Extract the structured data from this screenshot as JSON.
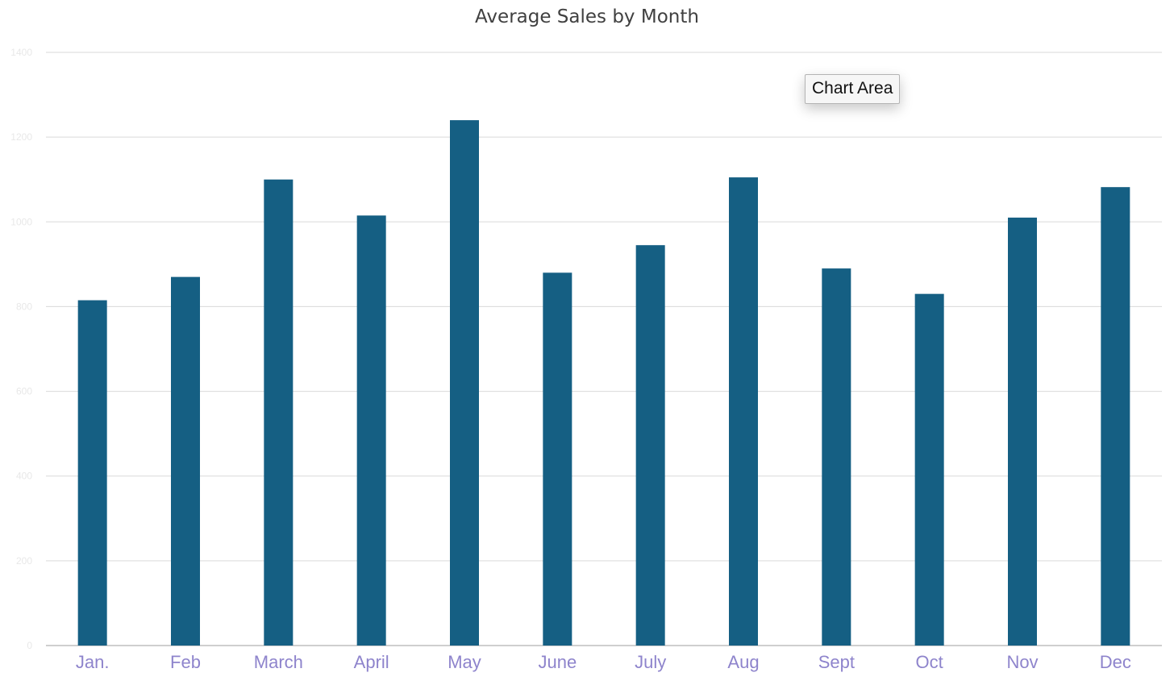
{
  "chart_data": {
    "type": "bar",
    "title": "Average Sales by Month",
    "categories": [
      "Jan.",
      "Feb",
      "March",
      "April",
      "May",
      "June",
      "July",
      "Aug",
      "Sept",
      "Oct",
      "Nov",
      "Dec"
    ],
    "values": [
      815,
      870,
      1100,
      1015,
      1240,
      880,
      945,
      1105,
      890,
      830,
      1010,
      1082
    ],
    "ylim": [
      0,
      1400
    ],
    "yticks": [
      0,
      200,
      400,
      600,
      800,
      1000,
      1200,
      1400
    ],
    "ytick_labels": [
      "0",
      "200",
      "400",
      "600",
      "800",
      "1000",
      "1200",
      "1400"
    ],
    "grid": true,
    "legend": "none",
    "colors": {
      "bar": "#155F83",
      "gridline": "#d9d9d9",
      "axis": "#bfbfbf",
      "x_tick_label": "#8e84cc",
      "y_tick_label": "#e8e8e8"
    }
  },
  "tooltip": {
    "label": "Chart Area"
  }
}
